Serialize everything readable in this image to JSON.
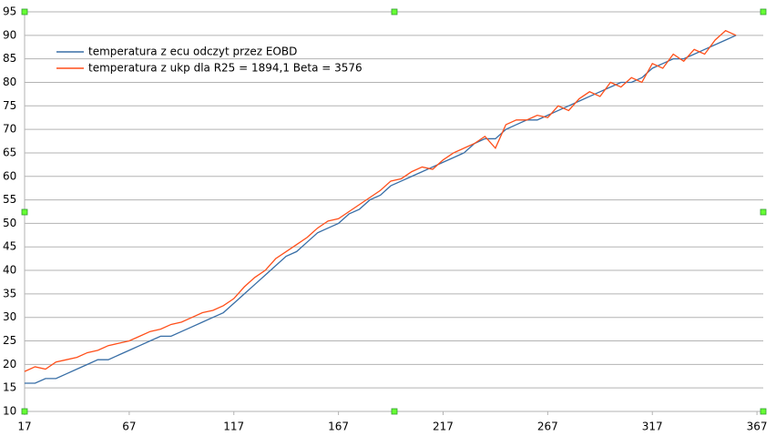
{
  "chart_data": {
    "type": "line",
    "x": [
      17,
      22,
      27,
      32,
      37,
      42,
      47,
      52,
      57,
      62,
      67,
      72,
      77,
      82,
      87,
      92,
      97,
      102,
      107,
      112,
      117,
      122,
      127,
      132,
      137,
      142,
      147,
      152,
      157,
      162,
      167,
      172,
      177,
      182,
      187,
      192,
      197,
      202,
      207,
      212,
      217,
      222,
      227,
      232,
      237,
      242,
      247,
      252,
      257,
      262,
      267,
      272,
      277,
      282,
      287,
      292,
      297,
      302,
      307,
      312,
      317,
      322,
      327,
      332,
      337,
      342,
      347,
      352,
      357
    ],
    "series": [
      {
        "name": "temperatura z ecu odczyt przez EOBD",
        "color": "#386ea6",
        "values": [
          16,
          16,
          17,
          17,
          18,
          19,
          20,
          21,
          21,
          22,
          23,
          24,
          25,
          26,
          26,
          27,
          28,
          29,
          30,
          31,
          33,
          35,
          37,
          39,
          41,
          43,
          44,
          46,
          48,
          49,
          50,
          52,
          53,
          55,
          56,
          58,
          59,
          60,
          61,
          62,
          63,
          64,
          65,
          67,
          68,
          68,
          70,
          71,
          72,
          72,
          73,
          74,
          75,
          76,
          77,
          78,
          79,
          80,
          80,
          81,
          83,
          84,
          85,
          85,
          86,
          87,
          88,
          89,
          90
        ]
      },
      {
        "name": "temperatura z ukp dla R25 = 1894,1 Beta = 3576",
        "color": "#ff4f1a",
        "values": [
          18.5,
          19.5,
          19,
          20.5,
          21,
          21.5,
          22.5,
          23,
          24,
          24.5,
          25,
          26,
          27,
          27.5,
          28.5,
          29,
          30,
          31,
          31.5,
          32.5,
          34,
          36.5,
          38.5,
          40,
          42.5,
          44,
          45.5,
          47,
          49,
          50.5,
          51,
          52.5,
          54,
          55.5,
          57,
          59,
          59.5,
          61,
          62,
          61.5,
          63.5,
          65,
          66,
          67,
          68.5,
          66,
          71,
          72,
          72,
          73,
          72.5,
          75,
          74,
          76.5,
          78,
          77,
          80,
          79,
          81,
          80,
          84,
          83,
          86,
          84.5,
          87,
          86,
          89,
          91,
          90
        ]
      }
    ],
    "xlim": [
      17,
      370
    ],
    "xticks": [
      17,
      67,
      117,
      167,
      217,
      267,
      317,
      367
    ],
    "ylim": [
      10,
      95
    ],
    "yticks": [
      10,
      15,
      20,
      25,
      30,
      35,
      40,
      45,
      50,
      55,
      60,
      65,
      70,
      75,
      80,
      85,
      90,
      95
    ],
    "grid": true
  }
}
